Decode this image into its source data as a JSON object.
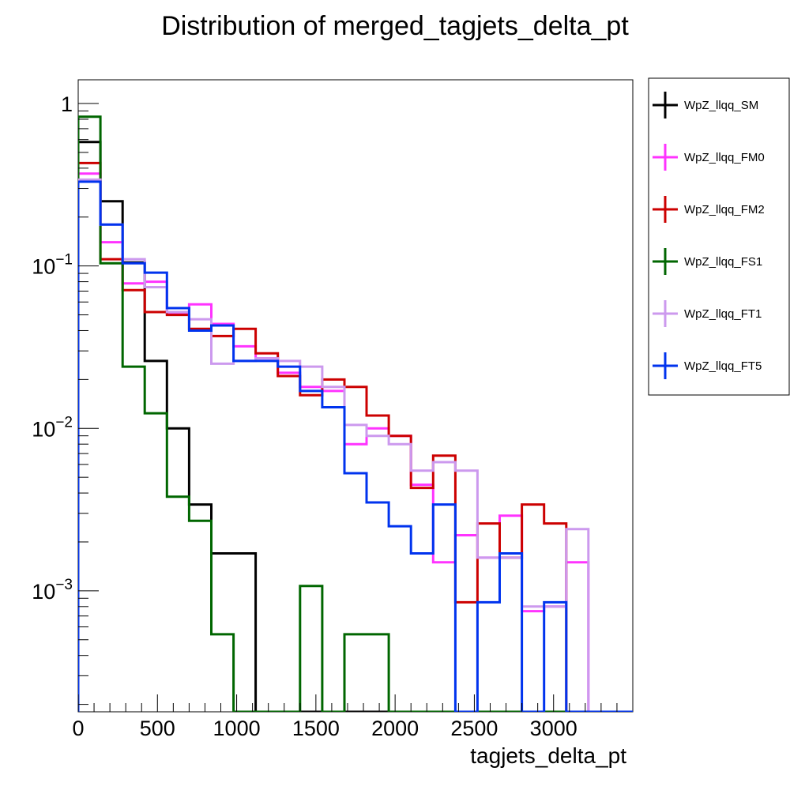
{
  "chart_data": {
    "type": "histogram",
    "title": "Distribution of merged_tagjets_delta_pt",
    "xlabel": "tagjets_delta_pt",
    "ylabel": "",
    "log_y": true,
    "xlim": [
      0,
      3500
    ],
    "ylim": [
      0.00018,
      1.4
    ],
    "bin_edges": [
      0,
      140,
      280,
      420,
      560,
      700,
      840,
      980,
      1120,
      1260,
      1400,
      1540,
      1680,
      1820,
      1960,
      2100,
      2240,
      2380,
      2520,
      2660,
      2800,
      2940,
      3080,
      3220,
      3360,
      3500
    ],
    "x_ticks": [
      0,
      500,
      1000,
      1500,
      2000,
      2500,
      3000
    ],
    "x_tick_labels": [
      "0",
      "500",
      "1000",
      "1500",
      "2000",
      "2500",
      "3000"
    ],
    "y_ticks": [
      1,
      0.1,
      0.01,
      0.001
    ],
    "y_tick_labels": [
      {
        "base": "1",
        "exp": ""
      },
      {
        "base": "10",
        "exp": "−1"
      },
      {
        "base": "10",
        "exp": "−2"
      },
      {
        "base": "10",
        "exp": "−3"
      }
    ],
    "legend_position": "right, outside plot",
    "series": [
      {
        "name": "WpZ_llqq_SM",
        "color": "#000000",
        "values": [
          0.58,
          0.25,
          0.105,
          0.026,
          0.01,
          0.0034,
          0.0017,
          0.0017,
          0,
          0,
          0,
          0,
          0,
          0,
          0,
          0,
          0,
          0,
          0,
          0,
          0,
          0,
          0,
          0,
          0
        ]
      },
      {
        "name": "WpZ_llqq_FM0",
        "color": "#ff33ff",
        "values": [
          0.37,
          0.14,
          0.078,
          0.08,
          0.051,
          0.058,
          0.044,
          0.032,
          0.027,
          0.022,
          0.018,
          0.017,
          0.008,
          0.01,
          0.009,
          0.0045,
          0.0015,
          0.0022,
          0.0016,
          0.0029,
          0.00075,
          0.0008,
          0.0015,
          0,
          0
        ]
      },
      {
        "name": "WpZ_llqq_FM2",
        "color": "#cc0000",
        "values": [
          0.43,
          0.11,
          0.071,
          0.052,
          0.05,
          0.041,
          0.037,
          0.041,
          0.029,
          0.021,
          0.016,
          0.02,
          0.018,
          0.012,
          0.009,
          0.0043,
          0.0068,
          0.00085,
          0.0026,
          0.0016,
          0.0034,
          0.0026,
          0,
          0,
          0
        ]
      },
      {
        "name": "WpZ_llqq_FS1",
        "color": "#006600",
        "values": [
          0.83,
          0.104,
          0.024,
          0.0124,
          0.0038,
          0.0027,
          0.00054,
          0,
          0,
          0,
          0.00107,
          0,
          0.00054,
          0.00054,
          0,
          0,
          0,
          0,
          0,
          0,
          0,
          0,
          0,
          0,
          0
        ]
      },
      {
        "name": "WpZ_llqq_FT1",
        "color": "#cc99ee",
        "values": [
          0.34,
          0.18,
          0.11,
          0.074,
          0.052,
          0.047,
          0.025,
          0.026,
          0.027,
          0.026,
          0.024,
          0.018,
          0.0105,
          0.009,
          0.008,
          0.0055,
          0.0062,
          0.0055,
          0.0016,
          0.0016,
          0.0008,
          0.0008,
          0.0024,
          0,
          0
        ]
      },
      {
        "name": "WpZ_llqq_FT5",
        "color": "#0033ee",
        "values": [
          0.33,
          0.18,
          0.104,
          0.091,
          0.055,
          0.04,
          0.043,
          0.026,
          0.026,
          0.024,
          0.017,
          0.0135,
          0.0053,
          0.0035,
          0.0025,
          0.0017,
          0.0034,
          0,
          0.00085,
          0.0017,
          0,
          0.00085,
          0,
          0,
          0
        ]
      }
    ]
  }
}
